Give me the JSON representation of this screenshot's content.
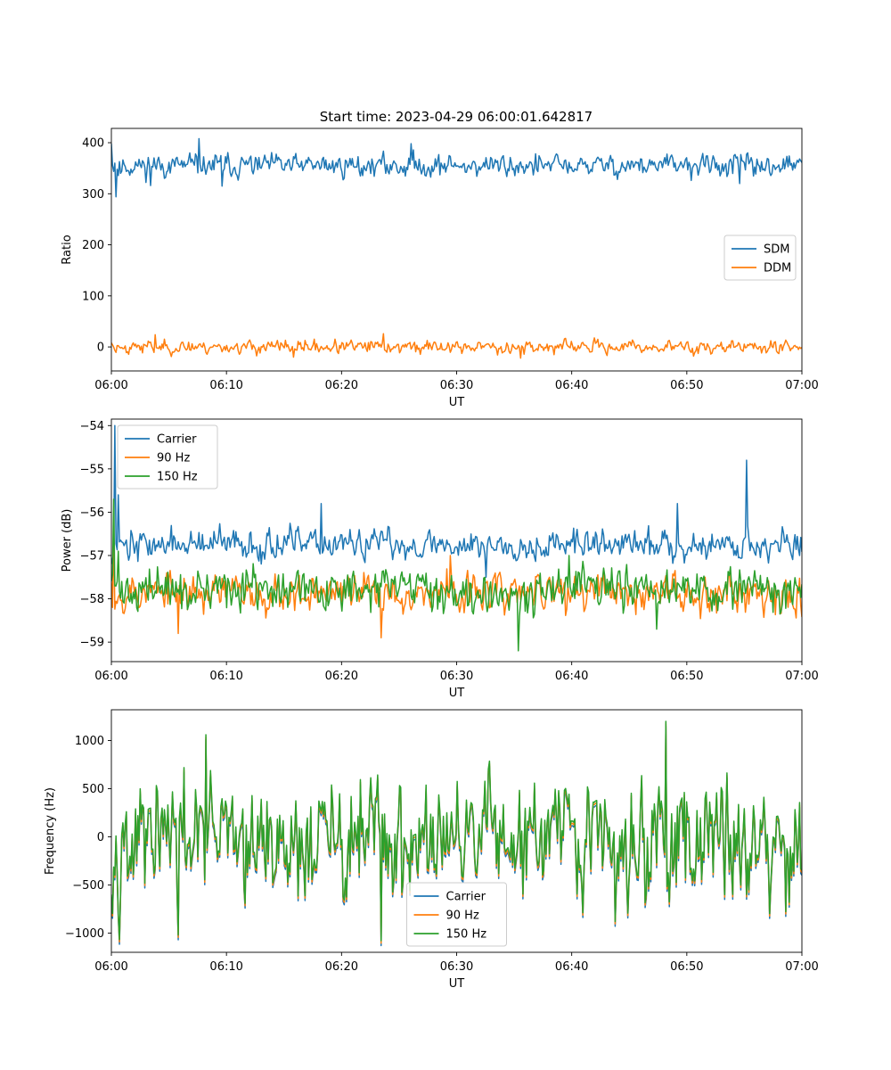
{
  "figure": {
    "title": "Start time: 2023-04-29 06:00:01.642817"
  },
  "colors": {
    "blue": "#1f77b4",
    "orange": "#ff7f0e",
    "green": "#2ca02c"
  },
  "chart_data": [
    {
      "type": "line",
      "title": "Start time: 2023-04-29 06:00:01.642817",
      "xlabel": "UT",
      "ylabel": "Ratio",
      "xlim": [
        "06:00",
        "07:00"
      ],
      "ylim": [
        -47,
        428
      ],
      "xticks": [
        "06:00",
        "06:10",
        "06:20",
        "06:30",
        "06:40",
        "06:50",
        "07:00"
      ],
      "yticks": [
        0,
        100,
        200,
        300,
        400
      ],
      "grid": false,
      "legend": "center-right",
      "samples": 600,
      "series": [
        {
          "name": "SDM",
          "color": "#1f77b4",
          "mean": 355,
          "noise": 14,
          "seed": 11,
          "features": [
            {
              "t": "06:00",
              "value": 398
            },
            {
              "t": "06:00.3",
              "value": 360
            },
            {
              "t": "06:00.4",
              "value": 294
            },
            {
              "t": "06:00.8",
              "value": 340
            },
            {
              "t": "06:03.4",
              "value": 316
            },
            {
              "t": "06:07.6",
              "value": 408
            },
            {
              "t": "06:09.6",
              "value": 315
            },
            {
              "t": "06:26",
              "value": 398
            },
            {
              "t": "06:54.6",
              "value": 320
            }
          ]
        },
        {
          "name": "DDM",
          "color": "#ff7f0e",
          "mean": 0,
          "noise": 8,
          "seed": 23,
          "features": [
            {
              "t": "06:00",
              "value": 8
            },
            {
              "t": "06:03.8",
              "value": 24
            },
            {
              "t": "06:23.6",
              "value": 26
            },
            {
              "t": "06:15.8",
              "value": -20
            },
            {
              "t": "06:35.6",
              "value": -22
            },
            {
              "t": "06:50.6",
              "value": -18
            }
          ]
        }
      ]
    },
    {
      "type": "line",
      "title": "",
      "xlabel": "UT",
      "ylabel": "Power (dB)",
      "xlim": [
        "06:00",
        "07:00"
      ],
      "ylim": [
        -59.45,
        -53.85
      ],
      "xticks": [
        "06:00",
        "06:10",
        "06:20",
        "06:30",
        "06:40",
        "06:50",
        "07:00"
      ],
      "yticks": [
        -59,
        -58,
        -57,
        -56,
        -55,
        -54
      ],
      "grid": false,
      "legend": "upper-left",
      "samples": 600,
      "series": [
        {
          "name": "Carrier",
          "color": "#1f77b4",
          "mean": -56.75,
          "noise": 0.22,
          "seed": 37,
          "features": [
            {
              "t": "06:00",
              "value": -57.2
            },
            {
              "t": "06:00.3",
              "value": -54.0
            },
            {
              "t": "06:00.6",
              "value": -55.6
            },
            {
              "t": "06:01",
              "value": -56.7
            },
            {
              "t": "06:18.2",
              "value": -55.8
            },
            {
              "t": "06:49.2",
              "value": -55.8
            },
            {
              "t": "06:55.2",
              "value": -54.8
            },
            {
              "t": "06:55.4",
              "value": -56.6
            },
            {
              "t": "06:32.6",
              "value": -57.5
            }
          ]
        },
        {
          "name": "90 Hz",
          "color": "#ff7f0e",
          "mean": -57.85,
          "noise": 0.28,
          "seed": 53,
          "features": [
            {
              "t": "06:00",
              "value": -57.6
            },
            {
              "t": "06:00.2",
              "value": -56.4
            },
            {
              "t": "06:23.4",
              "value": -58.9
            },
            {
              "t": "06:05.8",
              "value": -58.8
            },
            {
              "t": "06:29.4",
              "value": -57.0
            }
          ]
        },
        {
          "name": "150 Hz",
          "color": "#2ca02c",
          "mean": -57.8,
          "noise": 0.3,
          "seed": 71,
          "features": [
            {
              "t": "06:00",
              "value": -57.6
            },
            {
              "t": "06:00.2",
              "value": -55.7
            },
            {
              "t": "06:00.6",
              "value": -56.9
            },
            {
              "t": "06:35.4",
              "value": -59.2
            },
            {
              "t": "06:39.8",
              "value": -57.0
            },
            {
              "t": "06:47.4",
              "value": -58.7
            }
          ]
        }
      ]
    },
    {
      "type": "line",
      "title": "",
      "xlabel": "UT",
      "ylabel": "Frequency (Hz)",
      "xlim": [
        "06:00",
        "07:00"
      ],
      "ylim": [
        -1200,
        1320
      ],
      "xticks": [
        "06:00",
        "06:10",
        "06:20",
        "06:30",
        "06:40",
        "06:50",
        "07:00"
      ],
      "yticks": [
        -1000,
        -500,
        0,
        500,
        1000
      ],
      "grid": false,
      "legend": "lower-center",
      "samples": 600,
      "series": [
        {
          "name": "Carrier",
          "color": "#1f77b4",
          "mean": -40,
          "noise": 380,
          "seed": 97,
          "offset": -50,
          "features": [
            {
              "t": "06:05.8",
              "value": -1020
            },
            {
              "t": "06:08.2",
              "value": 1060
            },
            {
              "t": "06:23.4",
              "value": -1080
            },
            {
              "t": "06:48.2",
              "value": 1200
            },
            {
              "t": "06:43.8",
              "value": -880
            }
          ]
        },
        {
          "name": "90 Hz",
          "color": "#ff7f0e",
          "mean": -40,
          "noise": 380,
          "seed": 97,
          "offset": -25,
          "features": [
            {
              "t": "06:05.8",
              "value": -1020
            },
            {
              "t": "06:08.2",
              "value": 1060
            },
            {
              "t": "06:23.4",
              "value": -1080
            },
            {
              "t": "06:48.2",
              "value": 1200
            },
            {
              "t": "06:43.8",
              "value": -880
            }
          ]
        },
        {
          "name": "150 Hz",
          "color": "#2ca02c",
          "mean": -40,
          "noise": 380,
          "seed": 97,
          "offset": 0,
          "features": [
            {
              "t": "06:05.8",
              "value": -1020
            },
            {
              "t": "06:08.2",
              "value": 1060
            },
            {
              "t": "06:23.4",
              "value": -1080
            },
            {
              "t": "06:48.2",
              "value": 1200
            },
            {
              "t": "06:43.8",
              "value": -880
            }
          ]
        }
      ]
    }
  ]
}
